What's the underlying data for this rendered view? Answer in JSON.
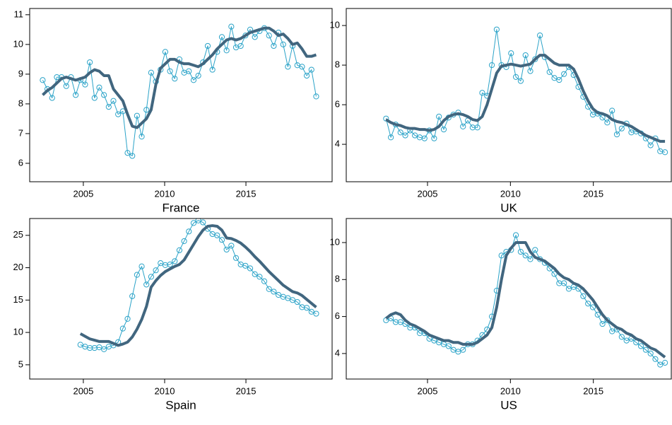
{
  "chart_data": [
    {
      "type": "line",
      "title": "France",
      "x": [
        2002.5,
        2002.79,
        2003.08,
        2003.37,
        2003.66,
        2003.95,
        2004.24,
        2004.53,
        2004.82,
        2005.11,
        2005.4,
        2005.69,
        2005.98,
        2006.27,
        2006.56,
        2006.85,
        2007.14,
        2007.43,
        2007.72,
        2008.01,
        2008.3,
        2008.59,
        2008.88,
        2009.17,
        2009.46,
        2009.75,
        2010.04,
        2010.33,
        2010.62,
        2010.91,
        2011.2,
        2011.49,
        2011.78,
        2012.07,
        2012.36,
        2012.65,
        2012.94,
        2013.23,
        2013.52,
        2013.81,
        2014.1,
        2014.39,
        2014.68,
        2014.97,
        2015.26,
        2015.55,
        2015.84,
        2016.13,
        2016.42,
        2016.71,
        2017.0,
        2017.29,
        2017.58,
        2017.87,
        2018.16,
        2018.45,
        2018.74,
        2019.03,
        2019.32
      ],
      "series": [
        {
          "color": "#2ba3c8",
          "linewidth": 1,
          "marker": "circle",
          "values": [
            8.8,
            8.5,
            8.2,
            8.9,
            8.9,
            8.6,
            8.9,
            8.3,
            8.8,
            8.65,
            9.4,
            8.2,
            8.55,
            8.3,
            7.9,
            8.1,
            7.65,
            7.75,
            6.35,
            6.25,
            7.6,
            6.9,
            7.8,
            9.05,
            8.75,
            9.15,
            9.75,
            9.1,
            8.85,
            9.5,
            9.05,
            9.1,
            8.8,
            8.95,
            9.4,
            9.95,
            9.15,
            9.75,
            10.25,
            9.8,
            10.6,
            9.9,
            9.95,
            10.3,
            10.5,
            10.25,
            10.45,
            10.55,
            10.3,
            9.95,
            10.4,
            10.0,
            9.25,
            9.95,
            9.3,
            9.25,
            8.95,
            9.15,
            8.25
          ]
        },
        {
          "color": "#41667f",
          "linewidth": 4,
          "values": [
            8.3,
            8.45,
            8.55,
            8.7,
            8.85,
            8.9,
            8.85,
            8.8,
            8.85,
            8.9,
            9.05,
            9.15,
            9.1,
            8.95,
            8.95,
            8.5,
            8.3,
            8.1,
            7.65,
            7.25,
            7.2,
            7.35,
            7.5,
            7.8,
            8.65,
            9.2,
            9.35,
            9.5,
            9.5,
            9.4,
            9.35,
            9.35,
            9.3,
            9.25,
            9.35,
            9.5,
            9.65,
            9.85,
            10.0,
            10.15,
            10.2,
            10.15,
            10.2,
            10.3,
            10.4,
            10.45,
            10.5,
            10.55,
            10.55,
            10.45,
            10.3,
            10.35,
            10.2,
            10.0,
            10.05,
            9.85,
            9.6,
            9.6,
            9.65
          ]
        }
      ],
      "xlim": [
        2001.7,
        2020.3
      ],
      "xticks": [
        2005,
        2010,
        2015
      ],
      "ylim": [
        5.38,
        11.21
      ],
      "yticks": [
        6,
        7,
        8,
        9,
        10,
        11
      ]
    },
    {
      "type": "line",
      "title": "UK",
      "x": [
        2002.5,
        2002.79,
        2003.08,
        2003.37,
        2003.66,
        2003.95,
        2004.24,
        2004.53,
        2004.82,
        2005.11,
        2005.4,
        2005.69,
        2005.98,
        2006.27,
        2006.56,
        2006.85,
        2007.14,
        2007.43,
        2007.72,
        2008.01,
        2008.3,
        2008.59,
        2008.88,
        2009.17,
        2009.46,
        2009.75,
        2010.04,
        2010.33,
        2010.62,
        2010.91,
        2011.2,
        2011.49,
        2011.78,
        2012.07,
        2012.36,
        2012.65,
        2012.94,
        2013.23,
        2013.52,
        2013.81,
        2014.1,
        2014.39,
        2014.68,
        2014.97,
        2015.26,
        2015.55,
        2015.84,
        2016.13,
        2016.42,
        2016.71,
        2017.0,
        2017.29,
        2017.58,
        2017.87,
        2018.16,
        2018.45,
        2018.74,
        2019.03,
        2019.32
      ],
      "series": [
        {
          "color": "#2ba3c8",
          "linewidth": 1,
          "marker": "circle",
          "values": [
            5.3,
            4.35,
            5.0,
            4.6,
            4.45,
            4.7,
            4.45,
            4.35,
            4.3,
            4.7,
            4.3,
            5.4,
            4.75,
            5.35,
            5.5,
            5.6,
            4.9,
            5.2,
            4.85,
            4.85,
            6.6,
            6.45,
            8.0,
            9.8,
            8.0,
            7.9,
            8.6,
            7.4,
            7.2,
            8.5,
            7.7,
            8.3,
            9.5,
            8.4,
            7.65,
            7.35,
            7.25,
            7.55,
            7.9,
            7.5,
            6.9,
            6.4,
            5.9,
            5.5,
            5.55,
            5.35,
            5.1,
            5.7,
            4.5,
            4.8,
            5.05,
            4.6,
            4.65,
            4.55,
            4.3,
            3.95,
            4.3,
            3.65,
            3.6
          ]
        },
        {
          "color": "#41667f",
          "linewidth": 4,
          "values": [
            5.25,
            5.1,
            5.0,
            4.95,
            4.85,
            4.8,
            4.8,
            4.75,
            4.75,
            4.7,
            4.75,
            4.9,
            5.2,
            5.4,
            5.5,
            5.55,
            5.5,
            5.4,
            5.25,
            5.2,
            5.4,
            6.0,
            6.8,
            7.6,
            7.95,
            8.0,
            8.05,
            8.0,
            7.95,
            8.0,
            8.05,
            8.3,
            8.5,
            8.5,
            8.3,
            8.1,
            8.0,
            8.0,
            8.0,
            7.8,
            7.3,
            6.7,
            6.2,
            5.8,
            5.6,
            5.55,
            5.45,
            5.25,
            5.15,
            5.1,
            5.0,
            4.9,
            4.75,
            4.6,
            4.45,
            4.35,
            4.25,
            4.15,
            4.15
          ]
        }
      ],
      "xlim": [
        2000.1,
        2019.7
      ],
      "xticks": [
        2005,
        2010,
        2015
      ],
      "ylim": [
        2.11,
        10.86
      ],
      "yticks": [
        4,
        6,
        8,
        10
      ]
    },
    {
      "type": "line",
      "title": "Spain",
      "x": [
        2004.82,
        2005.11,
        2005.4,
        2005.69,
        2005.98,
        2006.27,
        2006.56,
        2006.85,
        2007.14,
        2007.43,
        2007.72,
        2008.01,
        2008.3,
        2008.59,
        2008.88,
        2009.17,
        2009.46,
        2009.75,
        2010.04,
        2010.33,
        2010.62,
        2010.91,
        2011.2,
        2011.49,
        2011.78,
        2012.07,
        2012.36,
        2012.65,
        2012.94,
        2013.23,
        2013.52,
        2013.81,
        2014.1,
        2014.39,
        2014.68,
        2014.97,
        2015.26,
        2015.55,
        2015.84,
        2016.13,
        2016.42,
        2016.71,
        2017.0,
        2017.29,
        2017.58,
        2017.87,
        2018.16,
        2018.45,
        2018.74,
        2019.03,
        2019.32
      ],
      "series": [
        {
          "color": "#2ba3c8",
          "linewidth": 1,
          "marker": "circle",
          "values": [
            8.1,
            7.8,
            7.6,
            7.6,
            7.7,
            7.4,
            7.8,
            8.0,
            8.5,
            10.6,
            12.1,
            15.6,
            18.9,
            20.2,
            17.4,
            18.6,
            19.6,
            20.7,
            20.4,
            20.5,
            21.0,
            22.7,
            24.1,
            25.6,
            26.9,
            27.3,
            27.0,
            26.0,
            25.2,
            25.0,
            24.3,
            22.8,
            23.4,
            21.5,
            20.5,
            20.3,
            19.9,
            19.0,
            18.6,
            17.9,
            16.7,
            16.3,
            15.8,
            15.5,
            15.3,
            15.0,
            14.7,
            13.9,
            13.8,
            13.2,
            12.9
          ]
        },
        {
          "color": "#41667f",
          "linewidth": 4,
          "values": [
            9.8,
            9.4,
            9.0,
            8.8,
            8.6,
            8.6,
            8.6,
            8.3,
            8.0,
            8.2,
            8.5,
            9.3,
            10.5,
            12.0,
            14.0,
            17.0,
            18.0,
            18.8,
            19.4,
            19.8,
            20.2,
            20.5,
            21.2,
            22.4,
            23.6,
            24.8,
            25.8,
            26.4,
            26.5,
            26.4,
            25.8,
            24.6,
            24.5,
            24.2,
            23.8,
            23.2,
            22.5,
            21.7,
            21.0,
            20.2,
            19.4,
            18.7,
            18.0,
            17.3,
            16.8,
            16.3,
            16.1,
            15.7,
            15.1,
            14.5,
            13.9
          ]
        }
      ],
      "xlim": [
        2001.7,
        2020.3
      ],
      "xticks": [
        2005,
        2010,
        2015
      ],
      "ylim": [
        2.8,
        27.6
      ],
      "yticks": [
        5,
        10,
        15,
        20,
        25
      ]
    },
    {
      "type": "line",
      "title": "US",
      "x": [
        2002.5,
        2002.79,
        2003.08,
        2003.37,
        2003.66,
        2003.95,
        2004.24,
        2004.53,
        2004.82,
        2005.11,
        2005.4,
        2005.69,
        2005.98,
        2006.27,
        2006.56,
        2006.85,
        2007.14,
        2007.43,
        2007.72,
        2008.01,
        2008.3,
        2008.59,
        2008.88,
        2009.17,
        2009.46,
        2009.75,
        2010.04,
        2010.33,
        2010.62,
        2010.91,
        2011.2,
        2011.49,
        2011.78,
        2012.07,
        2012.36,
        2012.65,
        2012.94,
        2013.23,
        2013.52,
        2013.81,
        2014.1,
        2014.39,
        2014.68,
        2014.97,
        2015.26,
        2015.55,
        2015.84,
        2016.13,
        2016.42,
        2016.71,
        2017.0,
        2017.29,
        2017.58,
        2017.87,
        2018.16,
        2018.45,
        2018.74,
        2019.03,
        2019.32
      ],
      "series": [
        {
          "color": "#2ba3c8",
          "linewidth": 1,
          "marker": "circle",
          "values": [
            5.8,
            5.9,
            5.7,
            5.7,
            5.6,
            5.4,
            5.4,
            5.1,
            5.1,
            4.8,
            4.7,
            4.6,
            4.5,
            4.4,
            4.2,
            4.1,
            4.2,
            4.5,
            4.5,
            4.7,
            5.0,
            5.3,
            6.0,
            7.4,
            9.3,
            9.5,
            9.6,
            10.4,
            9.5,
            9.3,
            9.1,
            9.6,
            9.1,
            8.9,
            8.6,
            8.3,
            7.8,
            7.8,
            7.5,
            7.6,
            7.5,
            7.1,
            6.7,
            6.5,
            6.1,
            5.6,
            5.8,
            5.2,
            5.3,
            4.9,
            4.7,
            4.8,
            4.6,
            4.4,
            4.2,
            4.0,
            3.7,
            3.4,
            3.5
          ]
        },
        {
          "color": "#41667f",
          "linewidth": 4,
          "values": [
            5.9,
            6.1,
            6.2,
            6.1,
            5.8,
            5.6,
            5.5,
            5.35,
            5.2,
            5.0,
            4.9,
            4.8,
            4.7,
            4.7,
            4.6,
            4.6,
            4.5,
            4.5,
            4.5,
            4.6,
            4.8,
            5.0,
            5.4,
            6.5,
            8.0,
            9.3,
            9.7,
            10.0,
            10.0,
            10.0,
            9.5,
            9.2,
            9.1,
            9.0,
            8.8,
            8.6,
            8.3,
            8.1,
            8.0,
            7.8,
            7.7,
            7.5,
            7.2,
            6.9,
            6.5,
            6.1,
            5.8,
            5.6,
            5.4,
            5.3,
            5.1,
            5.0,
            4.8,
            4.7,
            4.5,
            4.3,
            4.2,
            4.0,
            3.8
          ]
        }
      ],
      "xlim": [
        2000.1,
        2019.7
      ],
      "xticks": [
        2005,
        2010,
        2015
      ],
      "ylim": [
        2.62,
        11.3
      ],
      "yticks": [
        4,
        6,
        8,
        10
      ]
    }
  ]
}
